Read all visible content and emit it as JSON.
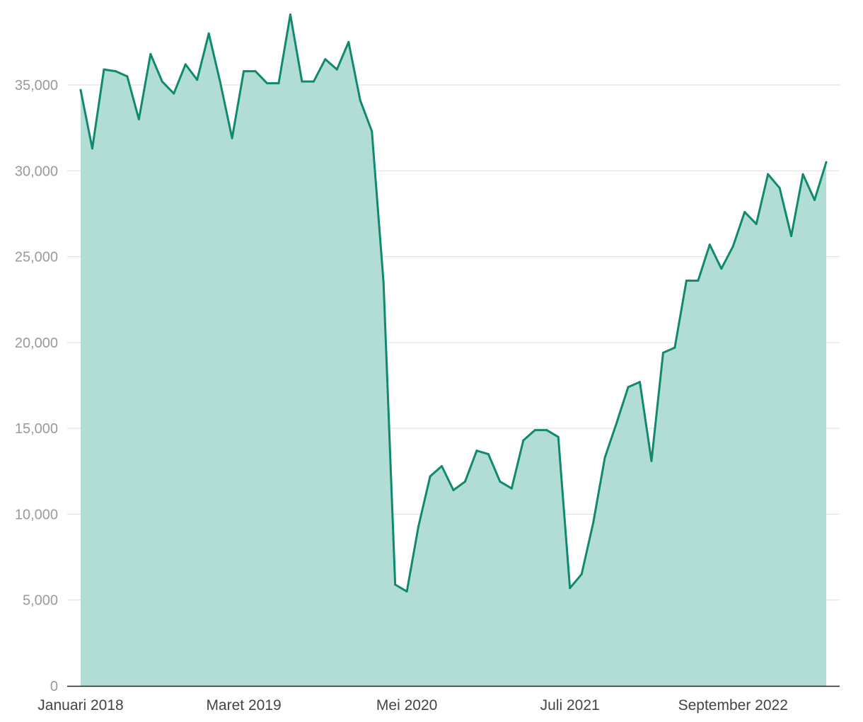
{
  "chart_data": {
    "type": "area",
    "title": "",
    "xlabel": "",
    "ylabel": "",
    "ylim": [
      0,
      39000
    ],
    "y_ticks": [
      {
        "value": 0,
        "label": "0"
      },
      {
        "value": 5000,
        "label": "5,000"
      },
      {
        "value": 10000,
        "label": "10,000"
      },
      {
        "value": 15000,
        "label": "15,000"
      },
      {
        "value": 20000,
        "label": "20,000"
      },
      {
        "value": 25000,
        "label": "25,000"
      },
      {
        "value": 30000,
        "label": "30,000"
      },
      {
        "value": 35000,
        "label": "35,000"
      }
    ],
    "x_ticks": [
      {
        "index": 0,
        "label": "Januari 2018"
      },
      {
        "index": 14,
        "label": "Maret 2019"
      },
      {
        "index": 28,
        "label": "Mei 2020"
      },
      {
        "index": 42,
        "label": "Juli 2021"
      },
      {
        "index": 56,
        "label": "September 2022"
      }
    ],
    "grid": true,
    "legend": "none",
    "line_color": "#0f8a6e",
    "fill_color": "#b2ddd4",
    "values": [
      34700,
      31300,
      35900,
      35800,
      35500,
      33000,
      36800,
      35200,
      34500,
      36200,
      35300,
      38000,
      35100,
      31900,
      35800,
      35800,
      35100,
      35100,
      39100,
      35200,
      35200,
      36500,
      35900,
      37500,
      34100,
      32300,
      23500,
      5900,
      5500,
      9300,
      12200,
      12800,
      11400,
      11900,
      13700,
      13500,
      11900,
      11500,
      14300,
      14900,
      14900,
      14500,
      5700,
      6500,
      9500,
      13300,
      15300,
      17400,
      17700,
      13100,
      19400,
      19700,
      23600,
      23600,
      25700,
      24300,
      25600,
      27600,
      26900,
      29800,
      29000,
      26200,
      29800,
      28300,
      30500
    ]
  }
}
